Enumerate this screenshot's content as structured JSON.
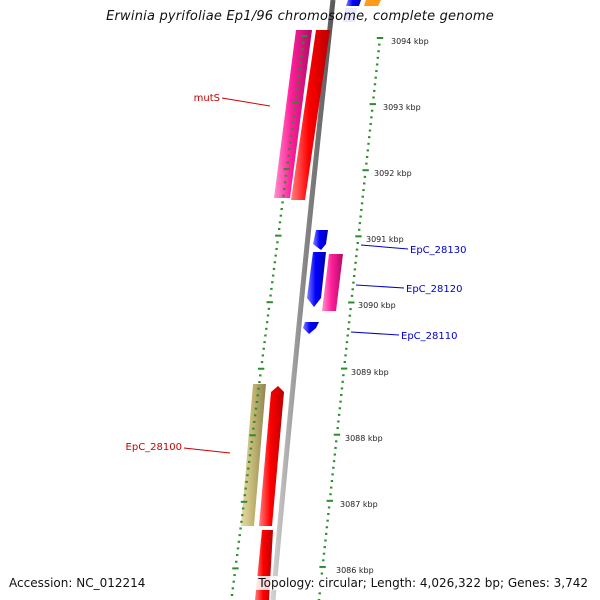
{
  "title": "Erwinia pyrifoliae Ep1/96 chromosome, complete genome",
  "accession": "Accession: NC_012214",
  "summary": "Topology: circular; Length: 4,026,322 bp; Genes: 3,742",
  "scale_labels": [
    "3094 kbp",
    "3093 kbp",
    "3092 kbp",
    "3091 kbp",
    "3090 kbp",
    "3089 kbp",
    "3088 kbp",
    "3087 kbp",
    "3086 kbp"
  ],
  "gene_labels": [
    {
      "name": "mutS",
      "color": "#cc0000"
    },
    {
      "name": "EpC_28130",
      "color": "#0000cc"
    },
    {
      "name": "EpC_28120",
      "color": "#0000cc"
    },
    {
      "name": "EpC_28110",
      "color": "#0000cc"
    },
    {
      "name": "EpC_28100",
      "color": "#cc0000"
    }
  ],
  "colors": {
    "backbone": "#8a8a8a",
    "tick": "#2e8b2e",
    "red": "#ff1a1a",
    "magenta": "#ff2aa0",
    "blue": "#1a1aff",
    "khaki": "#c8bd7a",
    "orange": "#ff9a1a"
  }
}
